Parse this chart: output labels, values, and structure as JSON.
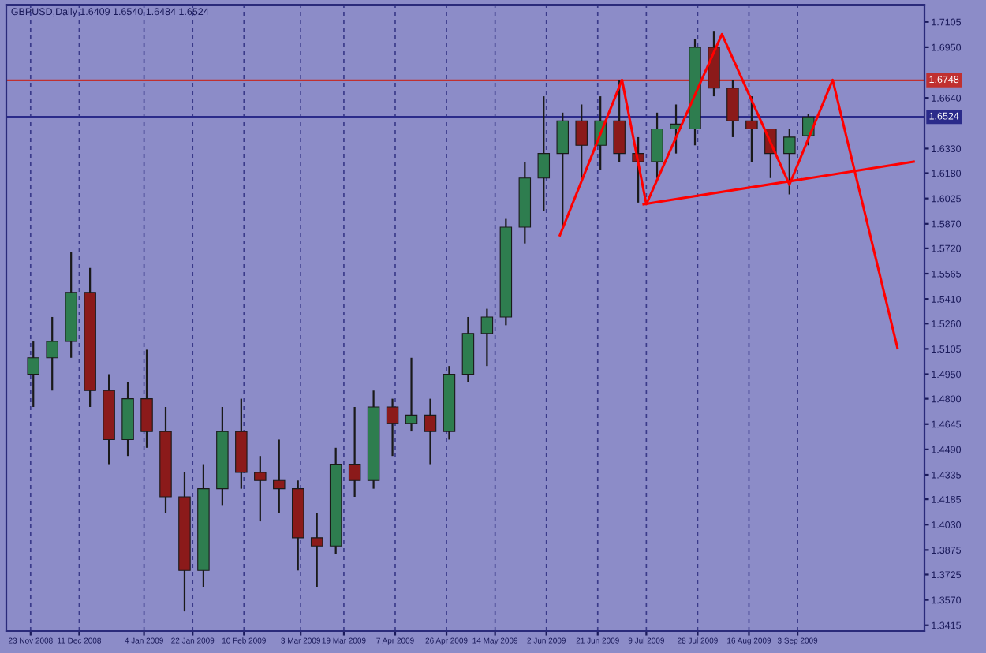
{
  "chart_data": {
    "type": "candlestick",
    "title": "GBPUSD,Daily 1.6409 1.6540 1.6484 1.6524",
    "x": [
      "2008-11-24",
      "2008-12-01",
      "2008-12-08",
      "2008-12-15",
      "2008-12-22",
      "2008-12-29",
      "2009-01-05",
      "2009-01-12",
      "2009-01-19",
      "2009-01-26",
      "2009-02-02",
      "2009-02-09",
      "2009-02-16",
      "2009-02-23",
      "2009-03-02",
      "2009-03-09",
      "2009-03-16",
      "2009-03-23",
      "2009-03-30",
      "2009-04-06",
      "2009-04-13",
      "2009-04-20",
      "2009-04-27",
      "2009-05-04",
      "2009-05-11",
      "2009-05-18",
      "2009-05-25",
      "2009-06-01",
      "2009-06-08",
      "2009-06-15",
      "2009-06-22",
      "2009-06-29",
      "2009-07-06",
      "2009-07-13",
      "2009-07-20",
      "2009-07-27",
      "2009-08-03",
      "2009-08-10",
      "2009-08-17",
      "2009-08-24",
      "2009-08-31",
      "2009-09-07"
    ],
    "ohlc": [
      [
        1.495,
        1.515,
        1.475,
        1.505
      ],
      [
        1.505,
        1.53,
        1.485,
        1.515
      ],
      [
        1.515,
        1.57,
        1.505,
        1.545
      ],
      [
        1.545,
        1.56,
        1.475,
        1.485
      ],
      [
        1.485,
        1.495,
        1.44,
        1.455
      ],
      [
        1.455,
        1.49,
        1.445,
        1.48
      ],
      [
        1.48,
        1.51,
        1.45,
        1.46
      ],
      [
        1.46,
        1.475,
        1.41,
        1.42
      ],
      [
        1.42,
        1.435,
        1.35,
        1.375
      ],
      [
        1.375,
        1.44,
        1.365,
        1.425
      ],
      [
        1.425,
        1.475,
        1.415,
        1.46
      ],
      [
        1.46,
        1.48,
        1.425,
        1.435
      ],
      [
        1.435,
        1.445,
        1.405,
        1.43
      ],
      [
        1.43,
        1.455,
        1.41,
        1.425
      ],
      [
        1.425,
        1.43,
        1.375,
        1.395
      ],
      [
        1.395,
        1.41,
        1.365,
        1.39
      ],
      [
        1.39,
        1.45,
        1.385,
        1.44
      ],
      [
        1.44,
        1.475,
        1.42,
        1.43
      ],
      [
        1.43,
        1.485,
        1.425,
        1.475
      ],
      [
        1.475,
        1.48,
        1.445,
        1.465
      ],
      [
        1.465,
        1.505,
        1.46,
        1.47
      ],
      [
        1.47,
        1.48,
        1.44,
        1.46
      ],
      [
        1.46,
        1.5,
        1.455,
        1.495
      ],
      [
        1.495,
        1.53,
        1.49,
        1.52
      ],
      [
        1.52,
        1.535,
        1.5,
        1.53
      ],
      [
        1.53,
        1.59,
        1.525,
        1.585
      ],
      [
        1.585,
        1.625,
        1.575,
        1.615
      ],
      [
        1.615,
        1.665,
        1.595,
        1.63
      ],
      [
        1.63,
        1.655,
        1.585,
        1.65
      ],
      [
        1.65,
        1.66,
        1.615,
        1.635
      ],
      [
        1.635,
        1.665,
        1.62,
        1.65
      ],
      [
        1.65,
        1.675,
        1.625,
        1.63
      ],
      [
        1.63,
        1.64,
        1.6,
        1.625
      ],
      [
        1.625,
        1.655,
        1.615,
        1.645
      ],
      [
        1.645,
        1.66,
        1.63,
        1.648
      ],
      [
        1.645,
        1.7,
        1.635,
        1.695
      ],
      [
        1.695,
        1.705,
        1.665,
        1.67
      ],
      [
        1.67,
        1.675,
        1.64,
        1.65
      ],
      [
        1.65,
        1.665,
        1.625,
        1.645
      ],
      [
        1.645,
        1.645,
        1.615,
        1.63
      ],
      [
        1.63,
        1.645,
        1.605,
        1.64
      ],
      [
        1.6409,
        1.654,
        1.635,
        1.6524
      ]
    ],
    "colors": [
      "#2e7d4f",
      "#2e7d4f",
      "#2e7d4f",
      "#8b1a1a",
      "#8b1a1a",
      "#2e7d4f",
      "#8b1a1a",
      "#8b1a1a",
      "#8b1a1a",
      "#2e7d4f",
      "#2e7d4f",
      "#8b1a1a",
      "#8b1a1a",
      "#8b1a1a",
      "#8b1a1a",
      "#8b1a1a",
      "#2e7d4f",
      "#8b1a1a",
      "#2e7d4f",
      "#8b1a1a",
      "#2e7d4f",
      "#8b1a1a",
      "#2e7d4f",
      "#2e7d4f",
      "#2e7d4f",
      "#2e7d4f",
      "#2e7d4f",
      "#2e7d4f",
      "#2e7d4f",
      "#8b1a1a",
      "#2e7d4f",
      "#8b1a1a",
      "#8b1a1a",
      "#2e7d4f",
      "#2e7d4f",
      "#2e7d4f",
      "#8b1a1a",
      "#8b1a1a",
      "#8b1a1a",
      "#8b1a1a",
      "#2e7d4f",
      "#2e7d4f"
    ],
    "series": [
      {
        "type": "line",
        "color": "#ff0000",
        "x": [
          "2009-06-07",
          "2009-06-30",
          "2009-07-09",
          "2009-08-06",
          "2009-08-31",
          "2009-09-16",
          "2009-10-10"
        ],
        "values": [
          1.58,
          1.675,
          1.599,
          1.703,
          1.611,
          1.675,
          1.511
        ]
      },
      {
        "type": "line",
        "color": "#ff0000",
        "x": [
          "2009-07-08",
          "2009-10-16"
        ],
        "values": [
          1.599,
          1.625
        ]
      }
    ],
    "ref_lines": [
      {
        "axis": "y",
        "value": 1.6748,
        "label": "1.6748",
        "color": "#c03030"
      },
      {
        "axis": "y",
        "value": 1.6524,
        "label": "1.6524",
        "color": "#2a2a8a"
      }
    ],
    "xlim": [
      "2008-11-14",
      "2009-10-20"
    ],
    "xticks": [
      {
        "value": "2008-11-23",
        "label": "23 Nov 2008"
      },
      {
        "value": "2008-12-11",
        "label": "11 Dec 2008"
      },
      {
        "value": "2009-01-04",
        "label": "4 Jan 2009"
      },
      {
        "value": "2009-01-22",
        "label": "22 Jan 2009"
      },
      {
        "value": "2009-02-10",
        "label": "10 Feb 2009"
      },
      {
        "value": "2009-03-03",
        "label": "3 Mar 2009"
      },
      {
        "value": "2009-03-19",
        "label": "19 Mar 2009"
      },
      {
        "value": "2009-04-07",
        "label": "7 Apr 2009"
      },
      {
        "value": "2009-04-26",
        "label": "26 Apr 2009"
      },
      {
        "value": "2009-05-14",
        "label": "14 May 2009"
      },
      {
        "value": "2009-06-02",
        "label": "2 Jun 2009"
      },
      {
        "value": "2009-06-21",
        "label": "21 Jun 2009"
      },
      {
        "value": "2009-07-09",
        "label": "9 Jul 2009"
      },
      {
        "value": "2009-07-28",
        "label": "28 Jul 2009"
      },
      {
        "value": "2009-08-16",
        "label": "16 Aug 2009"
      },
      {
        "value": "2009-09-03",
        "label": "3 Sep 2009"
      }
    ],
    "ylim": [
      1.338,
      1.721
    ],
    "yticks": [
      {
        "value": 1.7105,
        "label": "1.7105"
      },
      {
        "value": 1.695,
        "label": "1.6950"
      },
      {
        "value": 1.664,
        "label": "1.6640"
      },
      {
        "value": 1.633,
        "label": "1.6330"
      },
      {
        "value": 1.618,
        "label": "1.6180"
      },
      {
        "value": 1.6025,
        "label": "1.6025"
      },
      {
        "value": 1.587,
        "label": "1.5870"
      },
      {
        "value": 1.572,
        "label": "1.5720"
      },
      {
        "value": 1.5565,
        "label": "1.5565"
      },
      {
        "value": 1.541,
        "label": "1.5410"
      },
      {
        "value": 1.526,
        "label": "1.5260"
      },
      {
        "value": 1.5105,
        "label": "1.5105"
      },
      {
        "value": 1.495,
        "label": "1.4950"
      },
      {
        "value": 1.48,
        "label": "1.4800"
      },
      {
        "value": 1.4645,
        "label": "1.4645"
      },
      {
        "value": 1.449,
        "label": "1.4490"
      },
      {
        "value": 1.4335,
        "label": "1.4335"
      },
      {
        "value": 1.4185,
        "label": "1.4185"
      },
      {
        "value": 1.403,
        "label": "1.4030"
      },
      {
        "value": 1.3875,
        "label": "1.3875"
      },
      {
        "value": 1.3725,
        "label": "1.3725"
      },
      {
        "value": 1.357,
        "label": "1.3570"
      },
      {
        "value": 1.3415,
        "label": "1.3415"
      }
    ],
    "grid": "x",
    "line_style": "solid"
  }
}
